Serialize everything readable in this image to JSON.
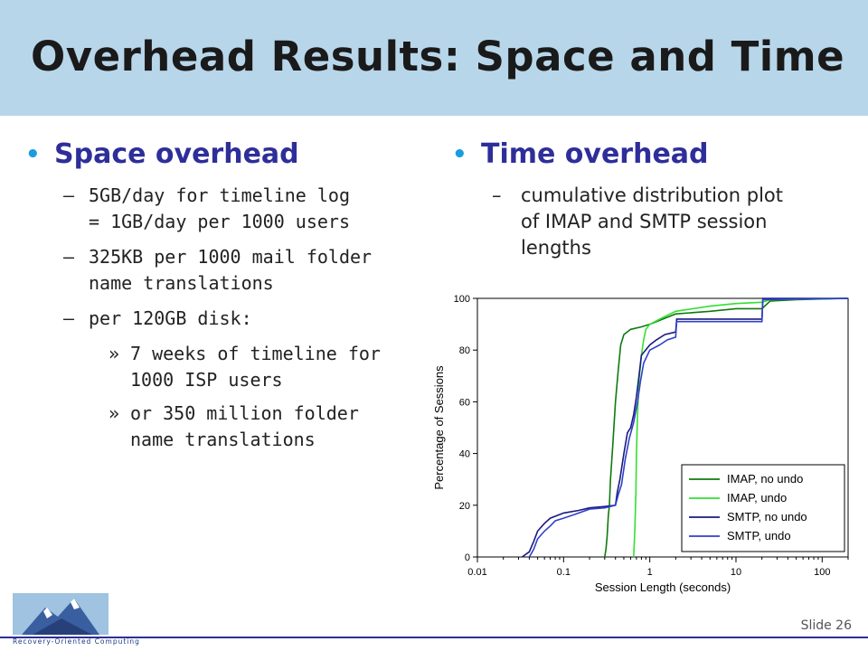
{
  "slide": {
    "title": "Overhead Results: Space and Time",
    "slide_number": "Slide 26",
    "logo_text": "Recovery-Oriented Computing"
  },
  "left": {
    "heading": "Space overhead",
    "items": [
      {
        "lines": [
          "5GB/day for timeline log",
          "= 1GB/day per 1000 users"
        ]
      },
      {
        "lines": [
          "325KB per 1000 mail folder",
          "name translations"
        ]
      },
      {
        "lines": [
          "per 120GB disk:"
        ]
      }
    ],
    "subitems": [
      {
        "lines": [
          "7 weeks of timeline for",
          "1000 ISP users"
        ]
      },
      {
        "lines": [
          "or 350 million folder",
          "name translations"
        ]
      }
    ]
  },
  "right": {
    "heading": "Time overhead",
    "item_lines": [
      "cumulative distribution plot",
      "of IMAP and SMTP session",
      "lengths"
    ]
  },
  "colors": {
    "header_bg": "#b8d6ea",
    "heading": "#2e2e9a",
    "bullet": "#1a9de0"
  },
  "chart_data": {
    "type": "line",
    "xlabel": "Session Length (seconds)",
    "ylabel": "Percentage of Sessions",
    "x_scale": "log",
    "xlim": [
      0.01,
      200
    ],
    "ylim": [
      0,
      100
    ],
    "x_ticks": [
      0.01,
      0.1,
      1,
      10,
      100
    ],
    "x_tick_labels": [
      "0.01",
      "0.1",
      "1",
      "10",
      "100"
    ],
    "y_ticks": [
      0,
      20,
      40,
      60,
      80,
      100
    ],
    "y_tick_labels": [
      "0",
      "20",
      "40",
      "60",
      "80",
      "100"
    ],
    "legend_position": "bottom-right",
    "series": [
      {
        "name": "IMAP, no undo",
        "color": "#0e7a0e",
        "points": [
          [
            0.3,
            0
          ],
          [
            0.31,
            3
          ],
          [
            0.32,
            8
          ],
          [
            0.33,
            16
          ],
          [
            0.34,
            20
          ],
          [
            0.35,
            30
          ],
          [
            0.37,
            42
          ],
          [
            0.4,
            60
          ],
          [
            0.43,
            72
          ],
          [
            0.46,
            82
          ],
          [
            0.5,
            86
          ],
          [
            0.6,
            88
          ],
          [
            0.8,
            89
          ],
          [
            1,
            90
          ],
          [
            2,
            94
          ],
          [
            5,
            95
          ],
          [
            10,
            96
          ],
          [
            20,
            96
          ],
          [
            25,
            99
          ],
          [
            50,
            99.5
          ],
          [
            200,
            100
          ]
        ]
      },
      {
        "name": "IMAP, undo",
        "color": "#33e033",
        "points": [
          [
            0.65,
            0
          ],
          [
            0.67,
            10
          ],
          [
            0.69,
            25
          ],
          [
            0.7,
            40
          ],
          [
            0.72,
            55
          ],
          [
            0.75,
            68
          ],
          [
            0.8,
            78
          ],
          [
            0.85,
            84
          ],
          [
            0.9,
            88
          ],
          [
            1.0,
            90
          ],
          [
            1.5,
            93
          ],
          [
            2,
            95
          ],
          [
            5,
            97
          ],
          [
            10,
            98
          ],
          [
            20,
            98.5
          ],
          [
            25,
            99.5
          ],
          [
            200,
            100
          ]
        ]
      },
      {
        "name": "SMTP, no undo",
        "color": "#1a1a80",
        "points": [
          [
            0.033,
            0
          ],
          [
            0.04,
            2
          ],
          [
            0.045,
            6
          ],
          [
            0.05,
            10
          ],
          [
            0.06,
            13
          ],
          [
            0.07,
            15
          ],
          [
            0.1,
            17
          ],
          [
            0.15,
            18
          ],
          [
            0.2,
            19
          ],
          [
            0.3,
            19.5
          ],
          [
            0.4,
            20
          ],
          [
            0.42,
            25
          ],
          [
            0.45,
            30
          ],
          [
            0.5,
            40
          ],
          [
            0.55,
            48
          ],
          [
            0.6,
            50
          ],
          [
            0.65,
            55
          ],
          [
            0.7,
            62
          ],
          [
            0.75,
            70
          ],
          [
            0.8,
            78
          ],
          [
            1.0,
            82
          ],
          [
            1.2,
            84
          ],
          [
            1.5,
            86
          ],
          [
            2,
            87
          ],
          [
            2.05,
            92
          ],
          [
            5,
            92
          ],
          [
            10,
            92
          ],
          [
            20,
            92
          ],
          [
            20.5,
            100
          ],
          [
            200,
            100
          ]
        ]
      },
      {
        "name": "SMTP, undo",
        "color": "#3040c8",
        "points": [
          [
            0.04,
            0
          ],
          [
            0.045,
            3
          ],
          [
            0.05,
            7
          ],
          [
            0.06,
            10
          ],
          [
            0.07,
            12
          ],
          [
            0.08,
            14
          ],
          [
            0.1,
            15
          ],
          [
            0.15,
            17
          ],
          [
            0.2,
            18.5
          ],
          [
            0.3,
            19
          ],
          [
            0.4,
            20
          ],
          [
            0.43,
            24
          ],
          [
            0.47,
            28
          ],
          [
            0.52,
            38
          ],
          [
            0.58,
            46
          ],
          [
            0.65,
            52
          ],
          [
            0.72,
            60
          ],
          [
            0.78,
            68
          ],
          [
            0.85,
            75
          ],
          [
            1.0,
            80
          ],
          [
            1.3,
            82
          ],
          [
            1.6,
            84
          ],
          [
            2,
            85
          ],
          [
            2.05,
            91
          ],
          [
            5,
            91
          ],
          [
            10,
            91
          ],
          [
            20,
            91
          ],
          [
            20.5,
            99.5
          ],
          [
            200,
            100
          ]
        ]
      }
    ]
  }
}
